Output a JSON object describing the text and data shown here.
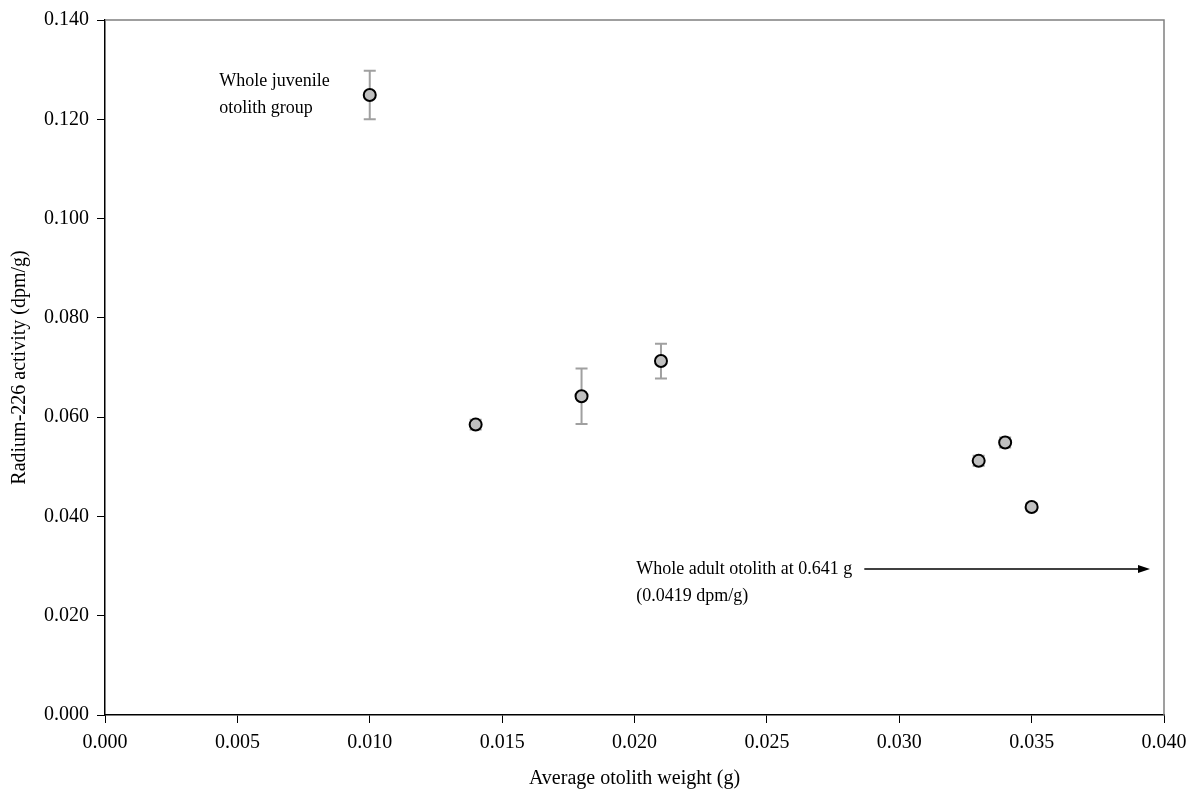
{
  "chart_data": {
    "type": "scatter",
    "xlabel": "Average otolith weight (g)",
    "ylabel": "Radium-226 activity (dpm/g)",
    "x": [
      0.01,
      0.014,
      0.018,
      0.021,
      0.033,
      0.034,
      0.035
    ],
    "values": [
      0.1249,
      0.0585,
      0.0642,
      0.0713,
      0.0512,
      0.0549,
      0.0419
    ],
    "errors": [
      0.0049,
      0.001,
      0.0056,
      0.0035,
      0.001,
      0.001,
      0.0007
    ],
    "color": "#c0c0c0",
    "marker": "circle",
    "xlim": [
      0,
      0.04
    ],
    "xticks": [
      {
        "value": 0,
        "label": "0.000"
      },
      {
        "value": 0.005,
        "label": "0.005"
      },
      {
        "value": 0.01,
        "label": "0.010"
      },
      {
        "value": 0.015,
        "label": "0.015"
      },
      {
        "value": 0.02,
        "label": "0.020"
      },
      {
        "value": 0.025,
        "label": "0.025"
      },
      {
        "value": 0.03,
        "label": "0.030"
      },
      {
        "value": 0.035,
        "label": "0.035"
      },
      {
        "value": 0.04,
        "label": "0.040"
      }
    ],
    "ylim": [
      0,
      0.14
    ],
    "yticks": [
      {
        "value": 0,
        "label": "0.000"
      },
      {
        "value": 0.02,
        "label": "0.020"
      },
      {
        "value": 0.04,
        "label": "0.040"
      },
      {
        "value": 0.06,
        "label": "0.060"
      },
      {
        "value": 0.08,
        "label": "0.080"
      },
      {
        "value": 0.1,
        "label": "0.100"
      },
      {
        "value": 0.12,
        "label": "0.120"
      },
      {
        "value": 0.14,
        "label": "0.140"
      }
    ],
    "grid": false,
    "legend": false,
    "annotations": [
      {
        "text": "Whole juvenile\notolith group",
        "x": 0.01,
        "y": 0.1249
      },
      "Whole adult otolith at 0.641 g\n(0.0419 dpm/g)"
    ]
  }
}
